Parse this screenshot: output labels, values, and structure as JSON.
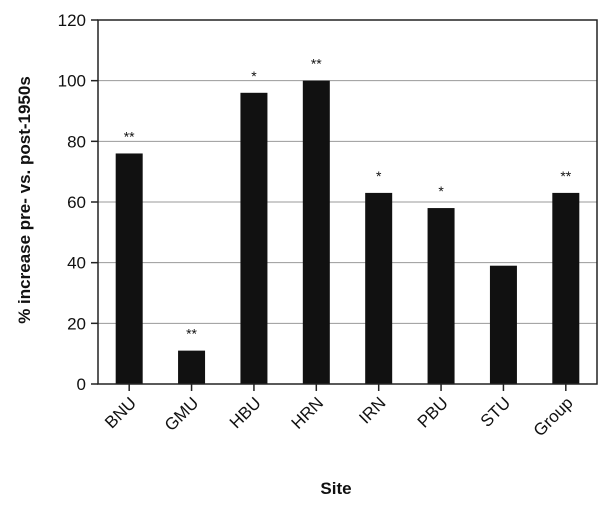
{
  "chart_data": {
    "type": "bar",
    "title": "",
    "xlabel": "Site",
    "ylabel": "% increase pre- vs. post-1950s",
    "categories": [
      "BNU",
      "GMU",
      "HBU",
      "HRN",
      "IRN",
      "PBU",
      "STU",
      "Group"
    ],
    "values": [
      76,
      11,
      96,
      100,
      63,
      58,
      39,
      63
    ],
    "annotations": [
      "**",
      "**",
      "*",
      "**",
      "*",
      "*",
      "",
      "**"
    ],
    "ylim": [
      0,
      120
    ],
    "yticks": [
      0,
      20,
      40,
      60,
      80,
      100,
      120
    ],
    "grid": true,
    "legend": "none",
    "bar_color": "#111111",
    "grid_color": "#9a9a9a",
    "axis_color": "#222222"
  }
}
